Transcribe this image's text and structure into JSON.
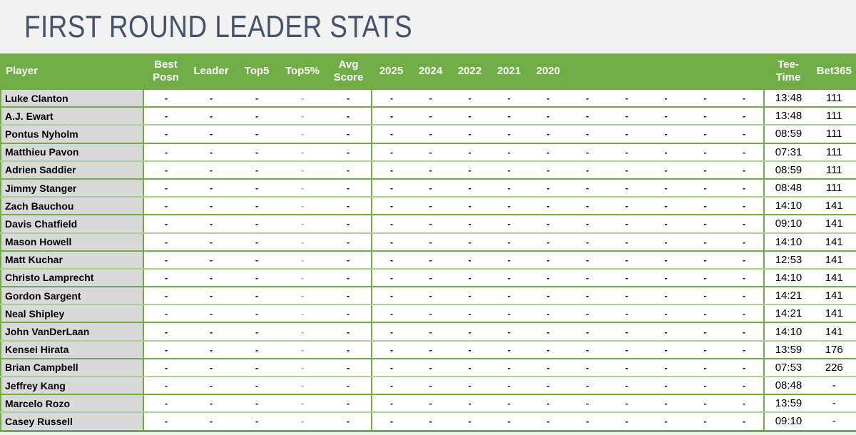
{
  "title": "FIRST ROUND LEADER STATS",
  "colors": {
    "header_green": "#70AD47",
    "row_border_green": "#70AD47",
    "row_border_light_green": "#A9D08E",
    "player_cell_bg": "#D9D9D9",
    "title_color": "#44546A",
    "page_bg": "#F2F2F2",
    "muted_dash": "#A6A6A6"
  },
  "table": {
    "headers": {
      "player": "Player",
      "best_posn": "Best Posn",
      "leader": "Leader",
      "top5": "Top5",
      "top5pct": "Top5%",
      "avg_score": "Avg Score",
      "years": [
        "2025",
        "2024",
        "2022",
        "2021",
        "2020"
      ],
      "tee_time": "Tee-Time",
      "bet365": "Bet365"
    },
    "rows": [
      {
        "player": "Luke Clanton",
        "cells": [
          "-",
          "-",
          "-",
          "-",
          "-",
          "-",
          "-",
          "-",
          "-",
          "-",
          "-",
          "-",
          "-",
          "-",
          "-"
        ],
        "tee_time": "13:48",
        "bet365": "111"
      },
      {
        "player": "A.J. Ewart",
        "cells": [
          "-",
          "-",
          "-",
          "-",
          "-",
          "-",
          "-",
          "-",
          "-",
          "-",
          "-",
          "-",
          "-",
          "-",
          "-"
        ],
        "tee_time": "13:48",
        "bet365": "111"
      },
      {
        "player": "Pontus Nyholm",
        "cells": [
          "-",
          "-",
          "-",
          "-",
          "-",
          "-",
          "-",
          "-",
          "-",
          "-",
          "-",
          "-",
          "-",
          "-",
          "-"
        ],
        "tee_time": "08:59",
        "bet365": "111"
      },
      {
        "player": "Matthieu Pavon",
        "cells": [
          "-",
          "-",
          "-",
          "-",
          "-",
          "-",
          "-",
          "-",
          "-",
          "-",
          "-",
          "-",
          "-",
          "-",
          "-"
        ],
        "tee_time": "07:31",
        "bet365": "111"
      },
      {
        "player": "Adrien Saddier",
        "cells": [
          "-",
          "-",
          "-",
          "-",
          "-",
          "-",
          "-",
          "-",
          "-",
          "-",
          "-",
          "-",
          "-",
          "-",
          "-"
        ],
        "tee_time": "08:59",
        "bet365": "111"
      },
      {
        "player": "Jimmy Stanger",
        "cells": [
          "-",
          "-",
          "-",
          "-",
          "-",
          "-",
          "-",
          "-",
          "-",
          "-",
          "-",
          "-",
          "-",
          "-",
          "-"
        ],
        "tee_time": "08:48",
        "bet365": "111"
      },
      {
        "player": "Zach Bauchou",
        "cells": [
          "-",
          "-",
          "-",
          "-",
          "-",
          "-",
          "-",
          "-",
          "-",
          "-",
          "-",
          "-",
          "-",
          "-",
          "-"
        ],
        "tee_time": "14:10",
        "bet365": "141"
      },
      {
        "player": "Davis Chatfield",
        "cells": [
          "-",
          "-",
          "-",
          "-",
          "-",
          "-",
          "-",
          "-",
          "-",
          "-",
          "-",
          "-",
          "-",
          "-",
          "-"
        ],
        "tee_time": "09:10",
        "bet365": "141"
      },
      {
        "player": "Mason Howell",
        "cells": [
          "-",
          "-",
          "-",
          "-",
          "-",
          "-",
          "-",
          "-",
          "-",
          "-",
          "-",
          "-",
          "-",
          "-",
          "-"
        ],
        "tee_time": "14:10",
        "bet365": "141"
      },
      {
        "player": "Matt Kuchar",
        "cells": [
          "-",
          "-",
          "-",
          "-",
          "-",
          "-",
          "-",
          "-",
          "-",
          "-",
          "-",
          "-",
          "-",
          "-",
          "-"
        ],
        "tee_time": "12:53",
        "bet365": "141"
      },
      {
        "player": "Christo Lamprecht",
        "cells": [
          "-",
          "-",
          "-",
          "-",
          "-",
          "-",
          "-",
          "-",
          "-",
          "-",
          "-",
          "-",
          "-",
          "-",
          "-"
        ],
        "tee_time": "14:10",
        "bet365": "141"
      },
      {
        "player": "Gordon Sargent",
        "cells": [
          "-",
          "-",
          "-",
          "-",
          "-",
          "-",
          "-",
          "-",
          "-",
          "-",
          "-",
          "-",
          "-",
          "-",
          "-"
        ],
        "tee_time": "14:21",
        "bet365": "141"
      },
      {
        "player": "Neal Shipley",
        "cells": [
          "-",
          "-",
          "-",
          "-",
          "-",
          "-",
          "-",
          "-",
          "-",
          "-",
          "-",
          "-",
          "-",
          "-",
          "-"
        ],
        "tee_time": "14:21",
        "bet365": "141"
      },
      {
        "player": "John VanDerLaan",
        "cells": [
          "-",
          "-",
          "-",
          "-",
          "-",
          "-",
          "-",
          "-",
          "-",
          "-",
          "-",
          "-",
          "-",
          "-",
          "-"
        ],
        "tee_time": "14:10",
        "bet365": "141"
      },
      {
        "player": "Kensei Hirata",
        "cells": [
          "-",
          "-",
          "-",
          "-",
          "-",
          "-",
          "-",
          "-",
          "-",
          "-",
          "-",
          "-",
          "-",
          "-",
          "-"
        ],
        "tee_time": "13:59",
        "bet365": "176"
      },
      {
        "player": "Brian Campbell",
        "cells": [
          "-",
          "-",
          "-",
          "-",
          "-",
          "-",
          "-",
          "-",
          "-",
          "-",
          "-",
          "-",
          "-",
          "-",
          "-"
        ],
        "tee_time": "07:53",
        "bet365": "226"
      },
      {
        "player": "Jeffrey Kang",
        "cells": [
          "-",
          "-",
          "-",
          "-",
          "-",
          "-",
          "-",
          "-",
          "-",
          "-",
          "-",
          "-",
          "-",
          "-",
          "-"
        ],
        "tee_time": "08:48",
        "bet365": "-"
      },
      {
        "player": "Marcelo Rozo",
        "cells": [
          "-",
          "-",
          "-",
          "-",
          "-",
          "-",
          "-",
          "-",
          "-",
          "-",
          "-",
          "-",
          "-",
          "-",
          "-"
        ],
        "tee_time": "13:59",
        "bet365": "-"
      },
      {
        "player": "Casey Russell",
        "cells": [
          "-",
          "-",
          "-",
          "-",
          "-",
          "-",
          "-",
          "-",
          "-",
          "-",
          "-",
          "-",
          "-",
          "-",
          "-"
        ],
        "tee_time": "09:10",
        "bet365": "-"
      }
    ]
  }
}
